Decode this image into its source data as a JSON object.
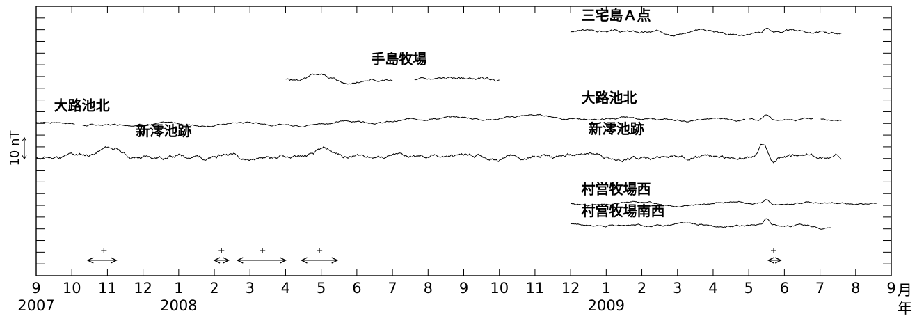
{
  "chart_data": {
    "type": "line",
    "x_axis": {
      "month_ticks": [
        "9",
        "10",
        "11",
        "12",
        "1",
        "2",
        "3",
        "4",
        "5",
        "6",
        "7",
        "8",
        "9",
        "10",
        "11",
        "12",
        "1",
        "2",
        "3",
        "4",
        "5",
        "6",
        "7",
        "8",
        "9"
      ],
      "year_labels": [
        {
          "text": "2007",
          "month_index": 0
        },
        {
          "text": "2008",
          "month_index": 4
        },
        {
          "text": "2009",
          "month_index": 16
        }
      ],
      "month_unit": "月",
      "year_unit": "年",
      "range": [
        "2007-09",
        "2009-09"
      ]
    },
    "y_axis": {
      "scale_label": "10 nT",
      "scale_nT": 10,
      "grid": false,
      "minor_ticks": true
    },
    "series": [
      {
        "name": "三宅島Ａ点",
        "start": 15.0,
        "end": 22.6,
        "offset": 95,
        "wiggle": 0.6,
        "seed": 3,
        "events": [
          {
            "t": 20.5,
            "amp": 2.0,
            "w": 0.12
          }
        ]
      },
      {
        "name": "手島牧場",
        "start": 7.0,
        "end": 13.0,
        "offset": 72,
        "wiggle": 0.7,
        "seed": 5,
        "gaps": [
          [
            10.0,
            10.6
          ]
        ],
        "events": [
          {
            "t": 8.0,
            "amp": 2.5,
            "w": 0.35
          },
          {
            "t": 8.7,
            "amp": -1.5,
            "w": 0.2
          }
        ]
      },
      {
        "name": "大路池北",
        "start": 0.0,
        "end": 22.6,
        "offset": 53,
        "wiggle": 0.45,
        "seed": 7,
        "gaps": [
          [
            1.1,
            1.3
          ],
          [
            19.9,
            20.0
          ],
          [
            21.8,
            22.0
          ]
        ],
        "trend": [
          [
            0,
            -1
          ],
          [
            1.1,
            -1
          ],
          [
            1.3,
            -1.5
          ],
          [
            5,
            -1.5
          ],
          [
            8,
            -1
          ],
          [
            11,
            1
          ],
          [
            14,
            2
          ],
          [
            17,
            0.5
          ],
          [
            20,
            0.5
          ],
          [
            22.6,
            0.5
          ]
        ],
        "events": [
          {
            "t": 20.5,
            "amp": 3.0,
            "w": 0.15
          }
        ]
      },
      {
        "name": "新澪池跡",
        "start": 0.0,
        "end": 22.6,
        "offset": 36,
        "wiggle": 1.0,
        "seed": 11,
        "events": [
          {
            "t": 2.1,
            "amp": 4.0,
            "w": 0.4
          },
          {
            "t": 5.5,
            "amp": 2.0,
            "w": 0.3
          },
          {
            "t": 8.1,
            "amp": 2.5,
            "w": 0.3
          },
          {
            "t": 13.3,
            "amp": 3.0,
            "w": 0.15
          },
          {
            "t": 20.4,
            "amp": 5.0,
            "w": 0.15
          },
          {
            "t": 20.7,
            "amp": -3.0,
            "w": 0.12
          }
        ]
      },
      {
        "name": "村営牧場西",
        "start": 15.0,
        "end": 23.6,
        "offset": 14,
        "wiggle": 0.4,
        "seed": 13,
        "events": [
          {
            "t": 20.5,
            "amp": 2.0,
            "w": 0.12
          }
        ]
      },
      {
        "name": "村営牧場南西",
        "start": 15.0,
        "end": 22.3,
        "offset": 4,
        "wiggle": 0.5,
        "seed": 17,
        "events": [
          {
            "t": 20.5,
            "amp": 2.5,
            "w": 0.12
          }
        ]
      }
    ],
    "label_anchors": [
      {
        "text": "三宅島Ａ点",
        "t": 15.3,
        "v": 100.5
      },
      {
        "text": "手島牧場",
        "t": 9.4,
        "v": 80
      },
      {
        "text": "大路池北",
        "t": 0.5,
        "v": 58
      },
      {
        "text": "大路池北",
        "t": 15.3,
        "v": 61.5
      },
      {
        "text": "新澪池跡",
        "t": 2.8,
        "v": 46
      },
      {
        "text": "新澪池跡",
        "t": 15.5,
        "v": 47
      },
      {
        "text": "村営牧場西",
        "t": 15.3,
        "v": 18.5
      },
      {
        "text": "村営牧場南西",
        "t": 15.3,
        "v": 8.3
      }
    ],
    "intervals": [
      {
        "start": 1.45,
        "end": 2.25,
        "plus_at": 1.9
      },
      {
        "start": 5.0,
        "end": 5.4,
        "plus_at": 5.2
      },
      {
        "start": 5.65,
        "end": 7.0,
        "plus_at": 6.35
      },
      {
        "start": 7.45,
        "end": 8.45,
        "plus_at": 7.95
      },
      {
        "start": 20.55,
        "end": 20.9,
        "plus_at": 20.7
      }
    ]
  }
}
